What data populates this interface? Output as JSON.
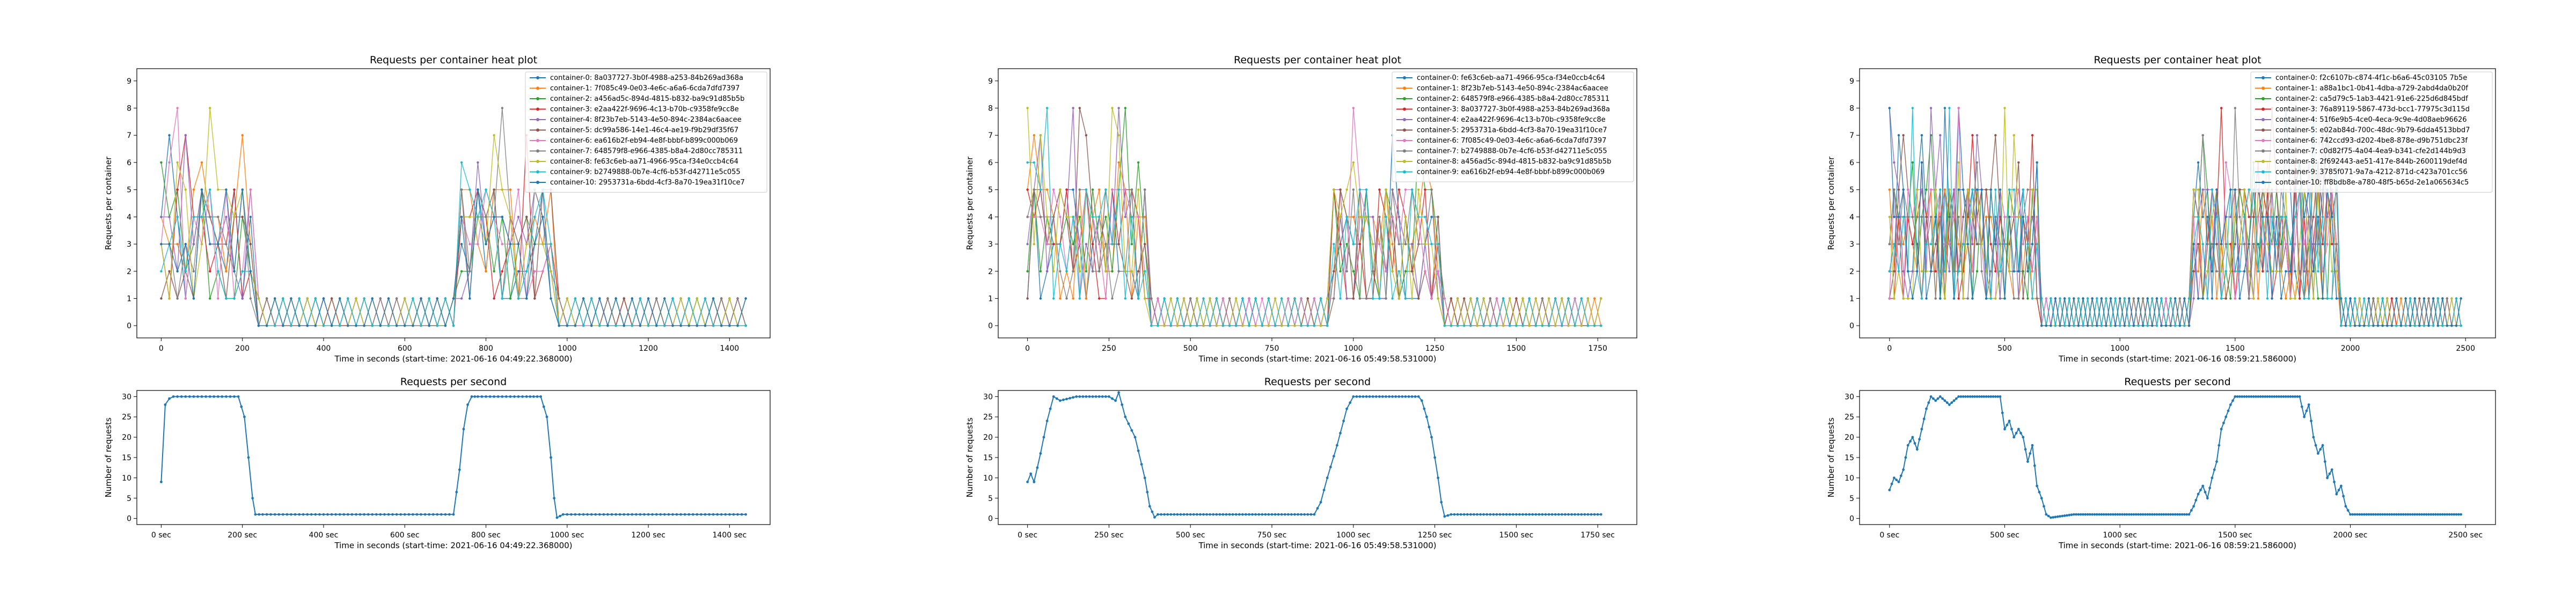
{
  "chart_data": [
    {
      "type": "line",
      "title": "Requests per container heat plot",
      "xlabel": "Time in seconds (start-time: 2021-06-16 04:49:22.368000)",
      "ylabel": "Requests per container",
      "xlim": [
        -60,
        1500
      ],
      "ylim": [
        -0.45,
        9.45
      ],
      "xticks": [
        "0",
        "200",
        "400",
        "600",
        "800",
        "1000",
        "1200",
        "1400"
      ],
      "xtick_values": [
        0,
        200,
        400,
        600,
        800,
        1000,
        1200,
        1400
      ],
      "yticks": [
        "0",
        "1",
        "2",
        "3",
        "4",
        "5",
        "6",
        "7",
        "8",
        "9"
      ],
      "legend": "upper right",
      "t_max": 1440,
      "bursts": [
        [
          0,
          225
        ],
        [
          730,
          970
        ]
      ],
      "series": [
        {
          "name": "container-0: 8a037727-3b0f-4988-a253-84b269ad368a"
        },
        {
          "name": "container-1: 7f085c49-0e03-4e6c-a6a6-6cda7dfd7397"
        },
        {
          "name": "container-2: a456ad5c-894d-4815-b832-ba9c91d85b5b"
        },
        {
          "name": "container-3: e2aa422f-9696-4c13-b70b-c9358fe9cc8e"
        },
        {
          "name": "container-4: 8f23b7eb-5143-4e50-894c-2384ac6aacee"
        },
        {
          "name": "container-5: dc99a586-14e1-46c4-ae19-f9b29df35f67"
        },
        {
          "name": "container-6: ea616b2f-eb94-4e8f-bbbf-b899c000b069"
        },
        {
          "name": "container-7: 648579f8-e966-4385-b8a4-2d80cc785311"
        },
        {
          "name": "container-8: fe63c6eb-aa71-4966-95ca-f34e0ccb4c64"
        },
        {
          "name": "container-9: b2749888-0b7e-4cf6-b53f-d42711e5c055"
        },
        {
          "name": "container-10: 2953731a-6bdd-4cf3-8a70-19ea31f10ce7"
        }
      ]
    },
    {
      "type": "line",
      "title": "Requests per second",
      "xlabel": "Time in seconds (start-time: 2021-06-16 04:49:22.368000)",
      "ylabel": "Number of requests",
      "xlim": [
        -60,
        1500
      ],
      "ylim": [
        -1.5,
        31.5
      ],
      "xticks": [
        "0 sec",
        "200 sec",
        "400 sec",
        "600 sec",
        "800 sec",
        "1000 sec",
        "1200 sec",
        "1400 sec"
      ],
      "xtick_values": [
        0,
        200,
        400,
        600,
        800,
        1000,
        1200,
        1400
      ],
      "yticks": [
        "0",
        "5",
        "10",
        "15",
        "20",
        "25",
        "30"
      ],
      "series": [
        {
          "name": "Requests per second",
          "x": [
            0,
            10,
            20,
            30,
            60,
            100,
            150,
            190,
            205,
            215,
            225,
            232,
            250,
            400,
            600,
            720,
            735,
            745,
            755,
            765,
            780,
            820,
            900,
            935,
            950,
            960,
            968,
            975,
            990,
            1200,
            1440
          ],
          "y": [
            9,
            28,
            29.5,
            30,
            30,
            30,
            30,
            30,
            25,
            15,
            5,
            1,
            1,
            1,
            1,
            1,
            12,
            22,
            28,
            30,
            30,
            30,
            30,
            30,
            25,
            15,
            5,
            0.2,
            1,
            1,
            1
          ]
        }
      ]
    },
    {
      "type": "line",
      "title": "Requests per container heat plot",
      "xlabel": "Time in seconds (start-time: 2021-06-16 05:49:58.531000)",
      "ylabel": "Requests per container",
      "xlim": [
        -90,
        1870
      ],
      "ylim": [
        -0.45,
        9.45
      ],
      "xticks": [
        "0",
        "250",
        "500",
        "750",
        "1000",
        "1250",
        "1500",
        "1750"
      ],
      "xtick_values": [
        0,
        250,
        500,
        750,
        1000,
        1250,
        1500,
        1750
      ],
      "yticks": [
        "0",
        "1",
        "2",
        "3",
        "4",
        "5",
        "6",
        "7",
        "8",
        "9"
      ],
      "legend": "upper right",
      "t_max": 1760,
      "bursts": [
        [
          0,
          370
        ],
        [
          930,
          1270
        ]
      ],
      "series": [
        {
          "name": "container-0: fe63c6eb-aa71-4966-95ca-f34e0ccb4c64"
        },
        {
          "name": "container-1: 8f23b7eb-5143-4e50-894c-2384ac6aacee"
        },
        {
          "name": "container-2: 648579f8-e966-4385-b8a4-2d80cc785311"
        },
        {
          "name": "container-3: 8a037727-3b0f-4988-a253-84b269ad368a"
        },
        {
          "name": "container-4: e2aa422f-9696-4c13-b70b-c9358fe9cc8e"
        },
        {
          "name": "container-5: 2953731a-6bdd-4cf3-8a70-19ea31f10ce7"
        },
        {
          "name": "container-6: 7f085c49-0e03-4e6c-a6a6-6cda7dfd7397"
        },
        {
          "name": "container-7: b2749888-0b7e-4cf6-b53f-d42711e5c055"
        },
        {
          "name": "container-8: a456ad5c-894d-4815-b832-ba9c91d85b5b"
        },
        {
          "name": "container-9: ea616b2f-eb94-4e8f-bbbf-b899c000b069"
        }
      ]
    },
    {
      "type": "line",
      "title": "Requests per second",
      "xlabel": "Time in seconds (start-time: 2021-06-16 05:49:58.531000)",
      "ylabel": "Number of requests",
      "xlim": [
        -90,
        1870
      ],
      "ylim": [
        -1.5,
        31.5
      ],
      "xticks": [
        "0 sec",
        "250 sec",
        "500 sec",
        "750 sec",
        "1000 sec",
        "1250 sec",
        "1500 sec",
        "1750 sec"
      ],
      "xtick_values": [
        0,
        250,
        500,
        750,
        1000,
        1250,
        1500,
        1750
      ],
      "yticks": [
        "0",
        "5",
        "10",
        "15",
        "20",
        "25",
        "30"
      ],
      "series": [
        {
          "name": "Requests per second",
          "x": [
            0,
            10,
            20,
            40,
            60,
            80,
            100,
            150,
            200,
            250,
            270,
            280,
            300,
            330,
            360,
            375,
            390,
            400,
            450,
            600,
            800,
            880,
            900,
            920,
            950,
            980,
            1000,
            1100,
            1200,
            1210,
            1225,
            1240,
            1260,
            1270,
            1280,
            1300,
            1500,
            1760
          ],
          "y": [
            9,
            11,
            9,
            16,
            24,
            30,
            29,
            30,
            30,
            30,
            29,
            31,
            25,
            20,
            10,
            3,
            0.3,
            1,
            1,
            1,
            1,
            1,
            4,
            10,
            18,
            27,
            30,
            30,
            30,
            29,
            25,
            20,
            10,
            4,
            0.5,
            1,
            1,
            1
          ]
        }
      ]
    },
    {
      "type": "line",
      "title": "Requests per container heat plot",
      "xlabel": "Time in seconds (start-time: 2021-06-16 08:59:21.586000)",
      "ylabel": "Requests per container",
      "xlim": [
        -130,
        2630
      ],
      "ylim": [
        -0.45,
        9.45
      ],
      "xticks": [
        "0",
        "500",
        "1000",
        "1500",
        "2000",
        "2500"
      ],
      "xtick_values": [
        0,
        500,
        1000,
        1500,
        2000,
        2500
      ],
      "yticks": [
        "0",
        "1",
        "2",
        "3",
        "4",
        "5",
        "6",
        "7",
        "8",
        "9"
      ],
      "legend": "upper right",
      "t_max": 2480,
      "bursts": [
        [
          0,
          640
        ],
        [
          1320,
          1950
        ]
      ],
      "series": [
        {
          "name": "container-0: f2c6107b-c874-4f1c-b6a6-45c03105 7b5e"
        },
        {
          "name": "container-1: a88a1bc1-0b41-4dba-a729-2abd4da0b20f"
        },
        {
          "name": "container-2: ca5d79c5-1ab3-4421-91e6-225d6d845bdf"
        },
        {
          "name": "container-3: 76a89119-5867-473d-bcc1-77975c3d115d"
        },
        {
          "name": "container-4: 51f6e9b5-4ce0-4eca-9c9e-4d08aeb96626"
        },
        {
          "name": "container-5: e02ab84d-700c-48dc-9b79-6dda4513bbd7"
        },
        {
          "name": "container-6: 742ccd93-d202-4be8-878e-d9b751dbc23f"
        },
        {
          "name": "container-7: c0d82f75-4a04-4ea9-b341-cfe2d144b9d3"
        },
        {
          "name": "container-8: 2f692443-ae51-417e-844b-2600119def4d"
        },
        {
          "name": "container-9: 3785f071-9a7a-4212-871d-c423a701cc56"
        },
        {
          "name": "container-10: ff8bdb8e-a780-48f5-b65d-2e1a065634c5"
        }
      ]
    },
    {
      "type": "line",
      "title": "Requests per second",
      "xlabel": "Time in seconds (start-time: 2021-06-16 08:59:21.586000)",
      "ylabel": "Number of requests",
      "xlim": [
        -130,
        2630
      ],
      "ylim": [
        -1.5,
        31.5
      ],
      "xticks": [
        "0 sec",
        "500 sec",
        "1000 sec",
        "1500 sec",
        "2000 sec",
        "2500 sec"
      ],
      "xtick_values": [
        0,
        500,
        1000,
        1500,
        2000,
        2500
      ],
      "yticks": [
        "0",
        "5",
        "10",
        "15",
        "20",
        "25",
        "30"
      ],
      "series": [
        {
          "name": "Requests per second",
          "x": [
            0,
            20,
            40,
            60,
            80,
            100,
            120,
            140,
            160,
            180,
            200,
            220,
            260,
            300,
            400,
            450,
            480,
            500,
            520,
            540,
            560,
            580,
            600,
            620,
            640,
            660,
            680,
            700,
            800,
            1000,
            1200,
            1300,
            1320,
            1340,
            1360,
            1380,
            1400,
            1420,
            1440,
            1460,
            1480,
            1500,
            1700,
            1780,
            1800,
            1820,
            1840,
            1860,
            1880,
            1900,
            1920,
            1940,
            1960,
            1980,
            2000,
            2200,
            2480
          ],
          "y": [
            7,
            10,
            9,
            12,
            18,
            20,
            17,
            22,
            27,
            30,
            29,
            30,
            28,
            30,
            30,
            30,
            30,
            22,
            24,
            20,
            22,
            20,
            14,
            18,
            8,
            5,
            1,
            0.2,
            1,
            1,
            1,
            1,
            3,
            6,
            8,
            5,
            10,
            14,
            22,
            25,
            28,
            30,
            30,
            30,
            25,
            28,
            20,
            16,
            18,
            10,
            12,
            6,
            8,
            3,
            1,
            1,
            1
          ]
        }
      ]
    }
  ],
  "colors": [
    "#1f77b4",
    "#ff7f0e",
    "#2ca02c",
    "#d62728",
    "#9467bd",
    "#8c564b",
    "#e377c2",
    "#7f7f7f",
    "#bcbd22",
    "#17becf"
  ],
  "line_color": "#1f77b4"
}
